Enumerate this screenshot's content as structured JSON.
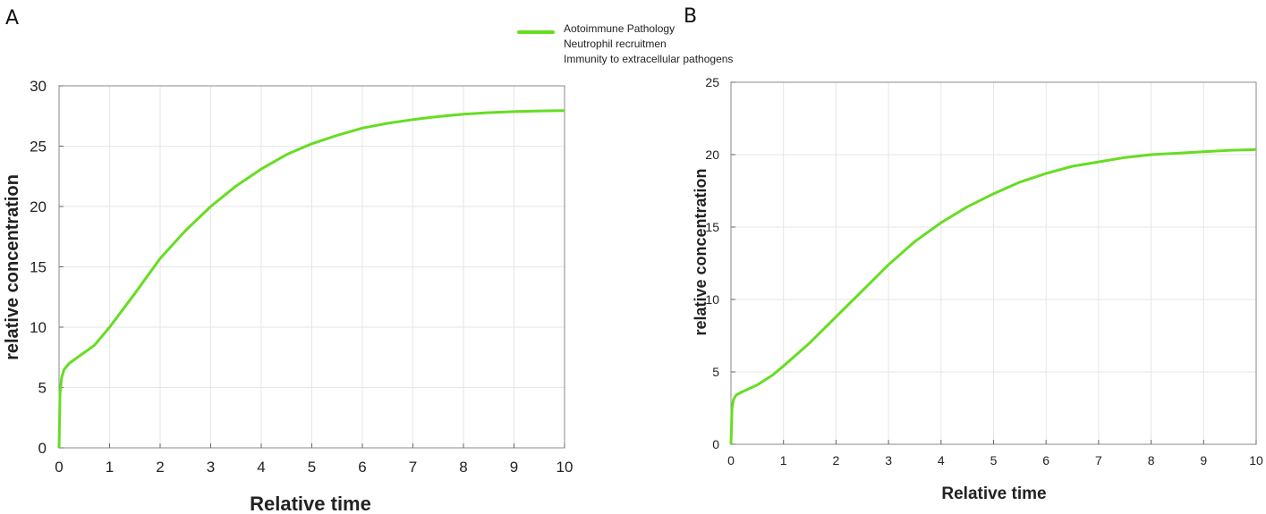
{
  "legend": {
    "entries": [
      "Aotoimmune Pathology",
      "Neutrophil recruitmen",
      "Immunity to extracellular pathogens"
    ],
    "color": "#66dd22"
  },
  "line_color": "#66dd22",
  "chart_data": [
    {
      "type": "line",
      "panel_label": "A",
      "xlabel": "Relative time",
      "ylabel": "relative concentration",
      "xlim": [
        0,
        10
      ],
      "ylim": [
        0,
        30
      ],
      "xticks": [
        0,
        1,
        2,
        3,
        4,
        5,
        6,
        7,
        8,
        9,
        10
      ],
      "yticks": [
        0,
        5,
        10,
        15,
        20,
        25,
        30
      ],
      "grid": true,
      "series": [
        {
          "x": [
            0,
            0.02,
            0.05,
            0.1,
            0.2,
            0.4,
            0.7,
            1,
            1.5,
            2,
            2.5,
            3,
            3.5,
            4,
            4.5,
            5,
            5.5,
            6,
            6.5,
            7,
            7.5,
            8,
            8.5,
            9,
            9.5,
            10
          ],
          "values": [
            0,
            4.5,
            5.8,
            6.5,
            7.0,
            7.6,
            8.5,
            10.0,
            12.8,
            15.7,
            18.0,
            20.0,
            21.7,
            23.1,
            24.3,
            25.2,
            25.9,
            26.5,
            26.9,
            27.2,
            27.45,
            27.65,
            27.78,
            27.86,
            27.92,
            27.95
          ]
        }
      ]
    },
    {
      "type": "line",
      "panel_label": "B",
      "xlabel": "Relative time",
      "ylabel": "relative concentration",
      "xlim": [
        0,
        10
      ],
      "ylim": [
        0,
        25
      ],
      "xticks": [
        0,
        1,
        2,
        3,
        4,
        5,
        6,
        7,
        8,
        9,
        10
      ],
      "yticks": [
        0,
        5,
        10,
        15,
        20,
        25
      ],
      "grid": true,
      "series": [
        {
          "x": [
            0,
            0.02,
            0.05,
            0.1,
            0.2,
            0.5,
            0.8,
            1,
            1.5,
            2,
            2.5,
            3,
            3.5,
            4,
            4.5,
            5,
            5.5,
            6,
            6.5,
            7,
            7.5,
            8,
            8.5,
            9,
            9.5,
            10
          ],
          "values": [
            0,
            2.5,
            3.1,
            3.4,
            3.6,
            4.1,
            4.8,
            5.4,
            7.0,
            8.8,
            10.6,
            12.4,
            14.0,
            15.3,
            16.4,
            17.3,
            18.1,
            18.7,
            19.2,
            19.5,
            19.8,
            20.0,
            20.1,
            20.2,
            20.3,
            20.35
          ]
        }
      ]
    }
  ]
}
